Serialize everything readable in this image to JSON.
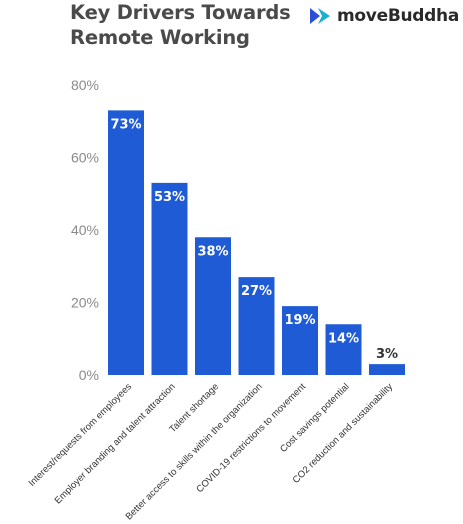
{
  "title_lines": [
    "Key Drivers Towards",
    "Remote Working"
  ],
  "brand": {
    "name": "moveBuddha",
    "logo_icon": "move-buddha-logo-icon",
    "colors": [
      "#2b4fd6",
      "#19b0d4"
    ]
  },
  "colors": {
    "bar": "#1f5bd5",
    "label_inside": "#ffffff",
    "label_outside": "#333333",
    "axis_tick": "#8a8a8a",
    "title": "#4a4a4a"
  },
  "chart_data": {
    "type": "bar",
    "title": "Key Drivers Towards Remote Working",
    "xlabel": "",
    "ylabel": "",
    "ylim": [
      0,
      80
    ],
    "yticks": [
      0,
      20,
      40,
      60,
      80
    ],
    "ytick_labels": [
      "0%",
      "20%",
      "40%",
      "60%",
      "80%"
    ],
    "grid": false,
    "legend": "none",
    "categories": [
      "Interest/requests from employees",
      "Employer branding and talent attraction",
      "Talent shortage",
      "Better access to skills within the organization",
      "COVID-19 restrictions to movement",
      "Cost savings potential",
      "CO2 reduction and sustainability"
    ],
    "values": [
      73,
      53,
      38,
      27,
      19,
      14,
      3
    ],
    "data_labels": [
      "73%",
      "53%",
      "38%",
      "27%",
      "19%",
      "14%",
      "3%"
    ]
  }
}
